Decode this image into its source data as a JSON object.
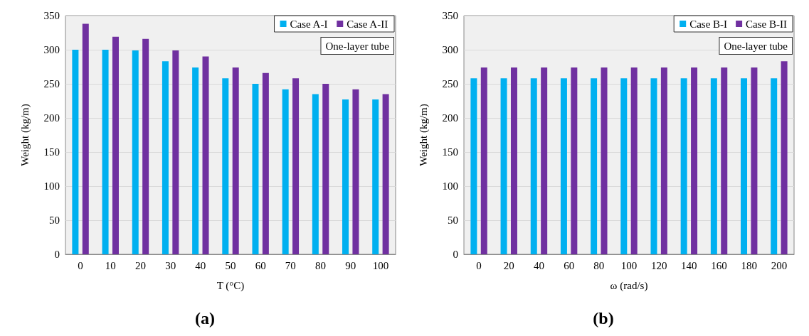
{
  "chart_data": [
    {
      "type": "bar",
      "title": "(a)",
      "xlabel": "T (°C)",
      "ylabel": "Weight (kg/m)",
      "categories": [
        "0",
        "10",
        "20",
        "30",
        "40",
        "50",
        "60",
        "70",
        "80",
        "90",
        "100"
      ],
      "series": [
        {
          "name": "Case A-I",
          "color": "#00b0f0",
          "values": [
            300,
            300,
            299,
            283,
            274,
            258,
            250,
            242,
            235,
            227,
            227
          ]
        },
        {
          "name": "Case A-II",
          "color": "#7030a0",
          "values": [
            338,
            319,
            316,
            299,
            290,
            274,
            266,
            258,
            250,
            242,
            235
          ]
        }
      ],
      "ylim": [
        0,
        350
      ],
      "yticks": [
        0,
        50,
        100,
        150,
        200,
        250,
        300,
        350
      ],
      "grid": "y",
      "legend": "top right",
      "annotations": [
        "One-layer tube"
      ]
    },
    {
      "type": "bar",
      "title": "(b)",
      "xlabel": "ω (rad/s)",
      "ylabel": "Weight (kg/m)",
      "categories": [
        "0",
        "20",
        "40",
        "60",
        "80",
        "100",
        "120",
        "140",
        "160",
        "180",
        "200"
      ],
      "series": [
        {
          "name": "Case B-I",
          "color": "#00b0f0",
          "values": [
            258,
            258,
            258,
            258,
            258,
            258,
            258,
            258,
            258,
            258,
            258
          ]
        },
        {
          "name": "Case B-II",
          "color": "#7030a0",
          "values": [
            274,
            274,
            274,
            274,
            274,
            274,
            274,
            274,
            274,
            274,
            283
          ]
        }
      ],
      "ylim": [
        0,
        350
      ],
      "yticks": [
        0,
        50,
        100,
        150,
        200,
        250,
        300,
        350
      ],
      "grid": "y",
      "legend": "top right",
      "annotations": [
        "One-layer tube"
      ]
    }
  ]
}
